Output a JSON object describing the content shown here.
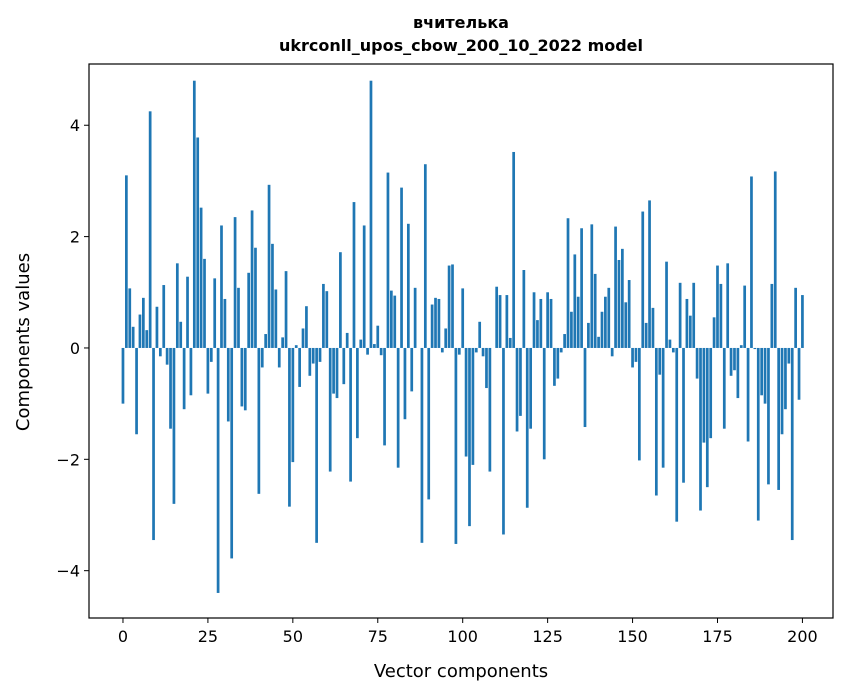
{
  "chart_data": {
    "type": "bar",
    "title": "вчителька",
    "subtitle": "ukrconll_upos_cbow_200_10_2022 model",
    "xlabel": "Vector components",
    "ylabel": "Components values",
    "xlim": [
      -10,
      209
    ],
    "ylim": [
      -4.85,
      5.1
    ],
    "xticks": [
      0,
      25,
      50,
      75,
      100,
      125,
      150,
      175,
      200
    ],
    "yticks": [
      -4,
      -2,
      0,
      2,
      4
    ],
    "ytick_labels": [
      "−4",
      "−2",
      "0",
      "2",
      "4"
    ],
    "bar_color": "#1f77b4",
    "grid": false,
    "values": [
      -1.0,
      3.1,
      1.07,
      0.38,
      -1.55,
      0.6,
      0.9,
      0.32,
      4.25,
      -3.45,
      0.74,
      -0.15,
      1.13,
      -0.3,
      -1.45,
      -2.8,
      1.52,
      0.47,
      -1.1,
      1.28,
      -0.85,
      4.8,
      3.78,
      2.52,
      1.6,
      -0.82,
      -0.25,
      1.25,
      -4.4,
      2.2,
      0.88,
      -1.32,
      -3.78,
      2.35,
      1.08,
      -1.05,
      -1.12,
      1.35,
      2.47,
      1.8,
      -2.62,
      -0.35,
      0.25,
      2.93,
      1.87,
      1.05,
      -0.35,
      0.19,
      1.38,
      -2.85,
      -2.05,
      0.05,
      -0.7,
      0.35,
      0.75,
      -0.5,
      -0.28,
      -3.5,
      -0.25,
      1.15,
      1.02,
      -2.22,
      -0.82,
      -0.9,
      1.72,
      -0.65,
      0.27,
      -2.4,
      2.62,
      -1.62,
      0.15,
      2.2,
      -0.12,
      4.8,
      0.07,
      0.4,
      -0.13,
      -1.75,
      3.15,
      1.03,
      0.94,
      -2.15,
      2.88,
      -1.28,
      2.23,
      -0.78,
      1.08,
      0.0,
      -3.5,
      3.3,
      -2.72,
      0.78,
      0.9,
      0.88,
      -0.08,
      0.35,
      1.48,
      1.5,
      -3.52,
      -0.12,
      1.07,
      -1.95,
      -3.2,
      -2.1,
      -0.08,
      0.47,
      -0.15,
      -0.72,
      -2.22,
      0.0,
      1.1,
      0.95,
      -3.35,
      0.95,
      0.18,
      3.52,
      -1.5,
      -1.22,
      1.4,
      -2.87,
      -1.45,
      1.0,
      0.5,
      0.88,
      -2.0,
      1.0,
      0.88,
      -0.68,
      -0.55,
      -0.08,
      0.25,
      2.33,
      0.65,
      1.68,
      0.92,
      2.15,
      -1.42,
      0.45,
      2.22,
      1.33,
      0.2,
      0.65,
      0.92,
      1.08,
      -0.15,
      2.18,
      1.58,
      1.78,
      0.82,
      1.22,
      -0.35,
      -0.25,
      -2.02,
      2.45,
      0.45,
      2.65,
      0.72,
      -2.65,
      -0.48,
      -2.15,
      1.55,
      0.15,
      -0.08,
      -3.12,
      1.17,
      -2.42,
      0.88,
      0.58,
      1.17,
      -0.55,
      -2.92,
      -1.7,
      -2.5,
      -1.62,
      0.55,
      1.48,
      1.15,
      -1.45,
      1.52,
      -0.5,
      -0.4,
      -0.9,
      0.05,
      1.12,
      -1.68,
      3.08,
      -0.02,
      -3.1,
      -0.85,
      -1.0,
      -2.45,
      1.15,
      3.17,
      -2.55,
      -1.55,
      -1.1,
      -0.28,
      -3.45,
      1.08,
      -0.93,
      0.95
    ]
  }
}
